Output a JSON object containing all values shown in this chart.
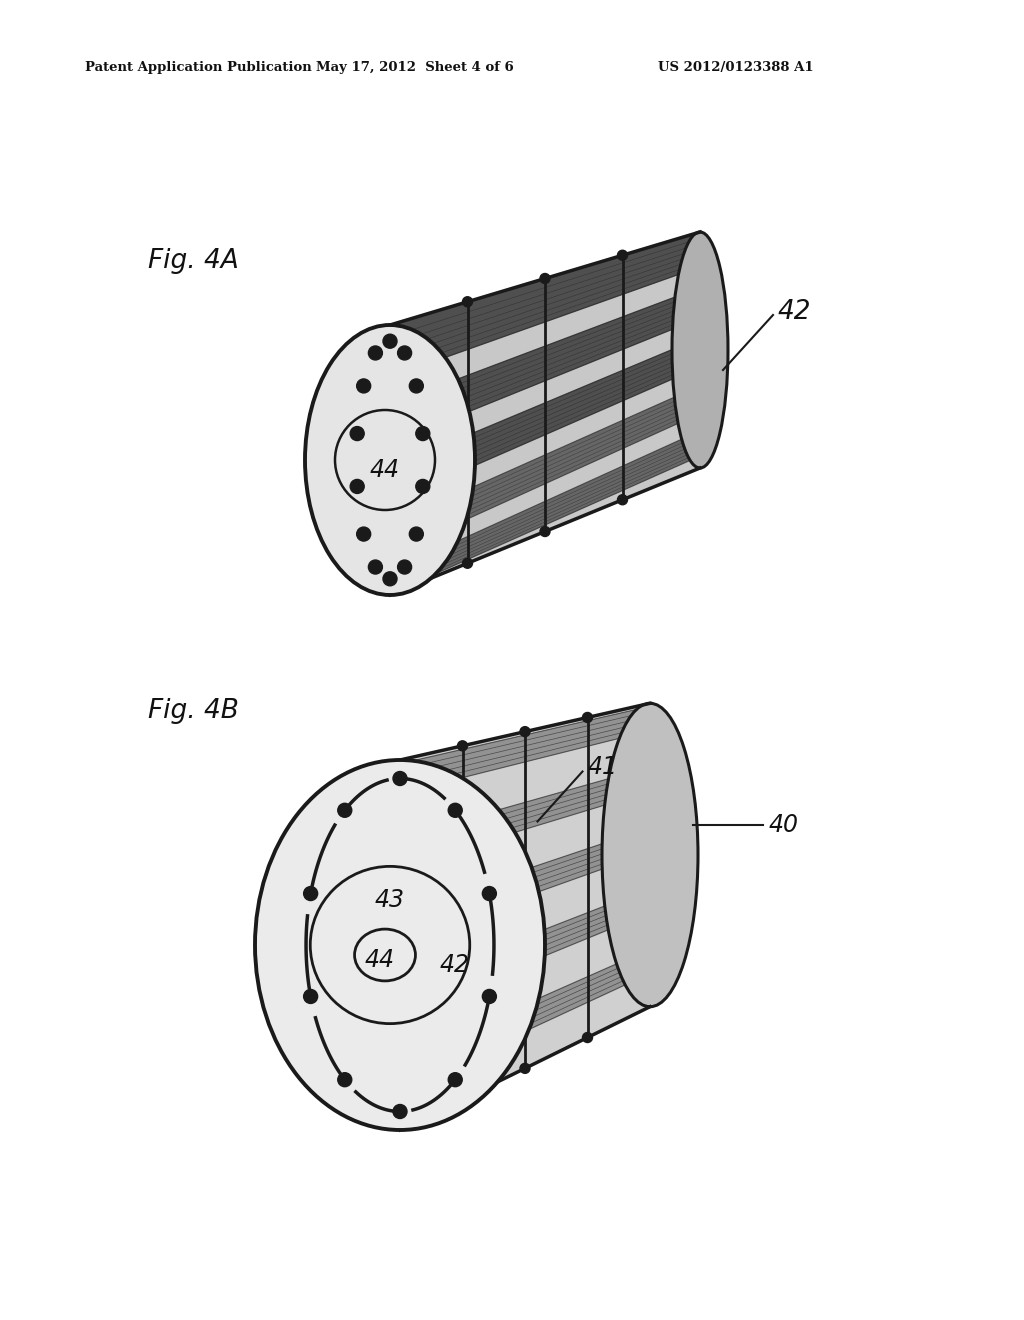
{
  "background_color": "#ffffff",
  "header_left": "Patent Application Publication",
  "header_center": "May 17, 2012  Sheet 4 of 6",
  "header_right": "US 2012/0123388 A1",
  "header_fontsize": 9.5,
  "fig4A_label": "Fig. 4A",
  "fig4B_label": "Fig. 4B",
  "label_42_4A": "42",
  "label_44_4A": "44",
  "label_40_4B": "40",
  "label_41_4B": "41",
  "label_42_4B": "42",
  "label_43_4B": "43",
  "label_44_4B": "44",
  "line_color": "#1a1a1a",
  "dark_shade": "#2a2a2a",
  "mid_shade": "#888888",
  "light_fill": "#e0e0e0",
  "face_fill": "#d8d8d8",
  "dot_color": "#1a1a1a"
}
